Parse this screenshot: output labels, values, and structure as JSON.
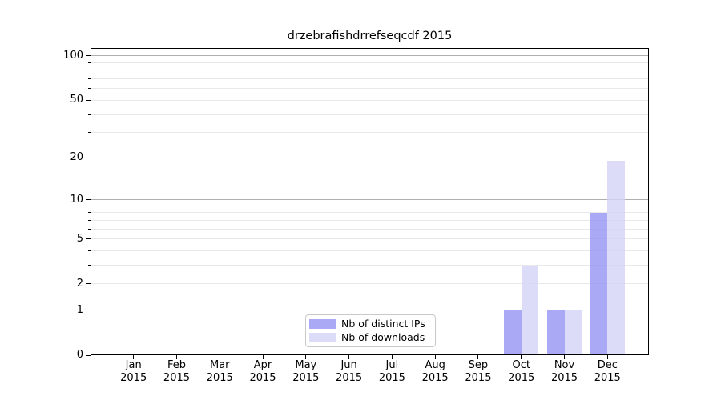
{
  "chart_data": {
    "type": "bar",
    "title": "drzebrafishdrrefseqcdf 2015",
    "categories": [
      "Jan",
      "Feb",
      "Mar",
      "Apr",
      "May",
      "Jun",
      "Jul",
      "Aug",
      "Sep",
      "Oct",
      "Nov",
      "Dec"
    ],
    "category_year": "2015",
    "series": [
      {
        "name": "Nb of distinct IPs",
        "color": "#9393F4",
        "opacity": 0.8,
        "values": [
          0,
          0,
          0,
          0,
          0,
          0,
          0,
          0,
          0,
          1,
          1,
          8
        ]
      },
      {
        "name": "Nb of downloads",
        "color": "#D3D3F6",
        "opacity": 0.8,
        "values": [
          0,
          0,
          0,
          0,
          0,
          0,
          0,
          0,
          0,
          3,
          1,
          19
        ]
      }
    ],
    "xlabel": "",
    "ylabel": "",
    "y_axis": {
      "scale": "log1p",
      "ylim": [
        0,
        113
      ],
      "labeled_ticks": [
        100,
        50,
        20,
        10,
        5,
        2,
        1,
        0
      ],
      "major_gridlines": [
        1,
        10,
        100
      ],
      "minor_gridlines": [
        2,
        3,
        4,
        5,
        6,
        7,
        8,
        9,
        20,
        30,
        40,
        50,
        60,
        70,
        80,
        90
      ]
    },
    "grid": {
      "axis": "y",
      "major_color": "#B0B0B0",
      "minor_color": "#E8E8E8"
    },
    "legend": {
      "position": "lower center",
      "border_color": "#C9C9C9"
    }
  }
}
